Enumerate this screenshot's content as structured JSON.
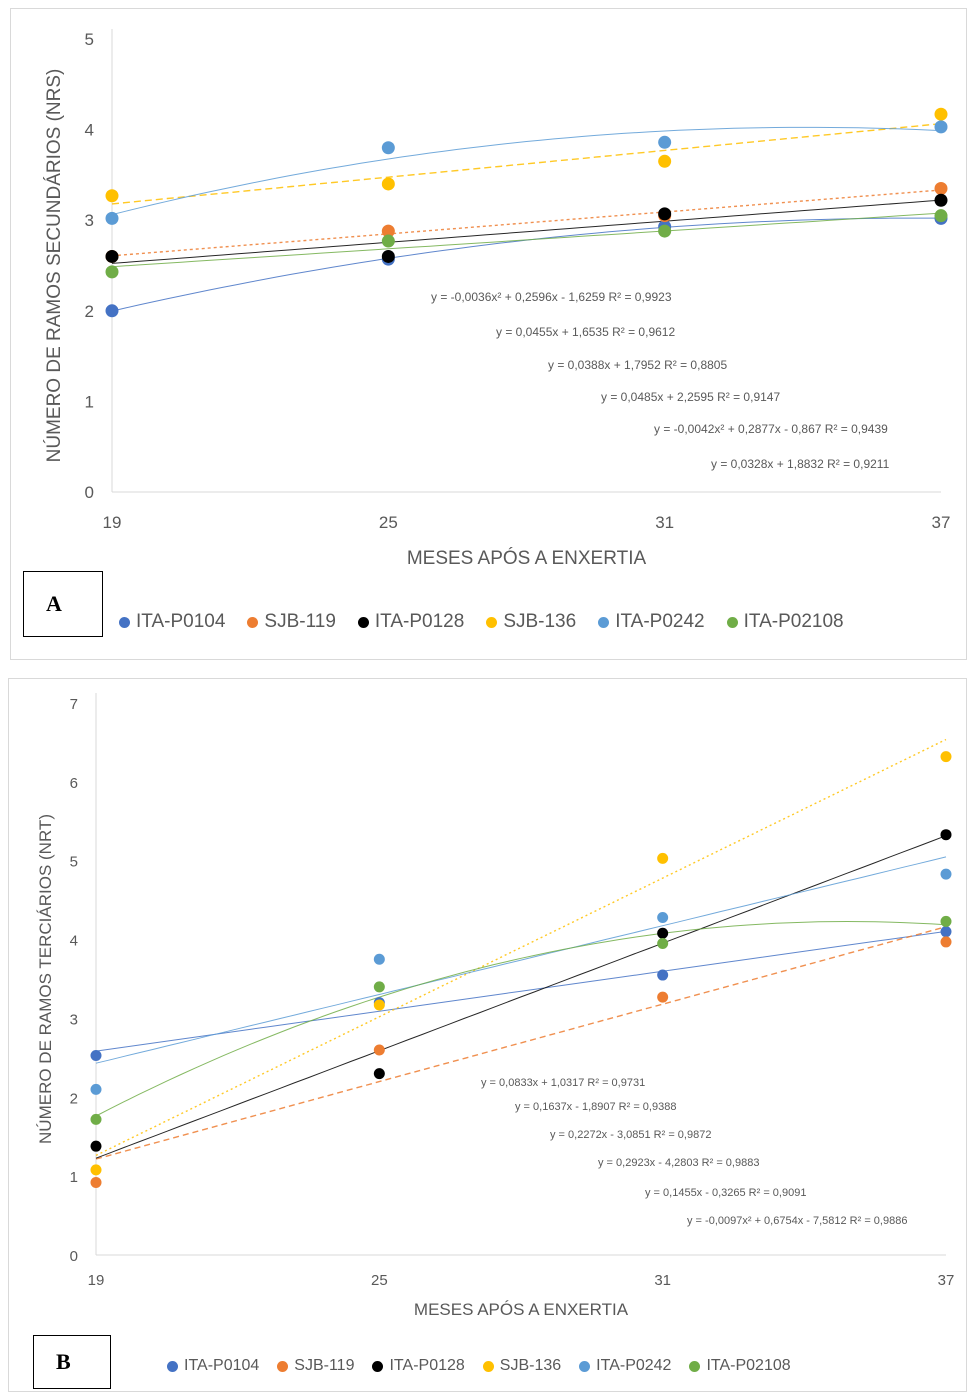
{
  "colors": {
    "ITA-P0104": "#4472C4",
    "SJB-119": "#ED7D31",
    "ITA-P0128": "#000000",
    "SJB-136": "#FFC000",
    "ITA-P0242": "#5B9BD5",
    "ITA-P02108": "#70AD47",
    "axis_text": "#595959"
  },
  "chart_data": [
    {
      "type": "scatter",
      "panel_label": "A",
      "ylabel": "NÚMERO DE RAMOS SECUNDÁRIOS (NRS)",
      "xlabel": "MESES APÓS A ENXERTIA",
      "x": [
        19,
        25,
        31,
        37
      ],
      "x_ticks": [
        "19",
        "25",
        "31",
        "37"
      ],
      "ylim": [
        0,
        5
      ],
      "y_ticks": [
        "0",
        "1",
        "2",
        "3",
        "4",
        "5"
      ],
      "grid": false,
      "legend_position": "bottom",
      "series": [
        {
          "name": "ITA-P0104",
          "values": [
            2.0,
            2.57,
            2.93,
            3.02
          ]
        },
        {
          "name": "SJB-119",
          "values": [
            2.6,
            2.88,
            3.05,
            3.35
          ]
        },
        {
          "name": "ITA-P0128",
          "values": [
            2.6,
            2.6,
            3.07,
            3.22
          ]
        },
        {
          "name": "SJB-136",
          "values": [
            3.27,
            3.4,
            3.65,
            4.17
          ]
        },
        {
          "name": "ITA-P0242",
          "values": [
            3.02,
            3.8,
            3.86,
            4.03
          ]
        },
        {
          "name": "ITA-P02108",
          "values": [
            2.43,
            2.77,
            2.88,
            3.05
          ]
        }
      ],
      "equations": [
        "y = -0,0036x² + 0,2596x - 1,6259 R² = 0,9923",
        "y = 0,0455x + 1,6535 R² = 0,9612",
        "y = 0,0388x + 1,7952 R² = 0,8805",
        "y = 0,0485x + 2,2595 R² = 0,9147",
        "y = -0,0042x² + 0,2877x - 0,867 R² = 0,9439",
        "y = 0,0328x + 1,8832 R² = 0,9211"
      ]
    },
    {
      "type": "scatter",
      "panel_label": "B",
      "ylabel": "NÚMERO DE RAMOS TERCIÁRIOS (NRT)",
      "xlabel": "MESES APÓS A ENXERTIA",
      "x": [
        19,
        25,
        31,
        37
      ],
      "x_ticks": [
        "19",
        "25",
        "31",
        "37"
      ],
      "ylim": [
        0,
        7
      ],
      "y_ticks": [
        "0",
        "1",
        "2",
        "3",
        "4",
        "5",
        "6",
        "7"
      ],
      "grid": false,
      "legend_position": "bottom",
      "series": [
        {
          "name": "ITA-P0104",
          "values": [
            2.53,
            3.2,
            3.55,
            4.1
          ]
        },
        {
          "name": "SJB-119",
          "values": [
            0.92,
            2.6,
            3.27,
            3.97
          ]
        },
        {
          "name": "ITA-P0128",
          "values": [
            1.38,
            2.3,
            4.08,
            5.33
          ]
        },
        {
          "name": "SJB-136",
          "values": [
            1.08,
            3.17,
            5.03,
            6.32
          ]
        },
        {
          "name": "ITA-P0242",
          "values": [
            2.1,
            3.75,
            4.28,
            4.83
          ]
        },
        {
          "name": "ITA-P02108",
          "values": [
            1.72,
            3.4,
            3.95,
            4.23
          ]
        }
      ],
      "equations": [
        "y = 0,0833x + 1,0317 R² = 0,9731",
        "y = 0,1637x - 1,8907 R² = 0,9388",
        "y = 0,2272x - 3,0851 R² = 0,9872",
        "y = 0,2923x - 4,2803 R² = 0,9883",
        "y = 0,1455x - 0,3265 R² = 0,9091",
        "y = -0,0097x² + 0,6754x - 7,5812 R² = 0,9886"
      ]
    }
  ],
  "legend": [
    "ITA-P0104",
    "SJB-119",
    "ITA-P0128",
    "SJB-136",
    "ITA-P0242",
    "ITA-P02108"
  ]
}
